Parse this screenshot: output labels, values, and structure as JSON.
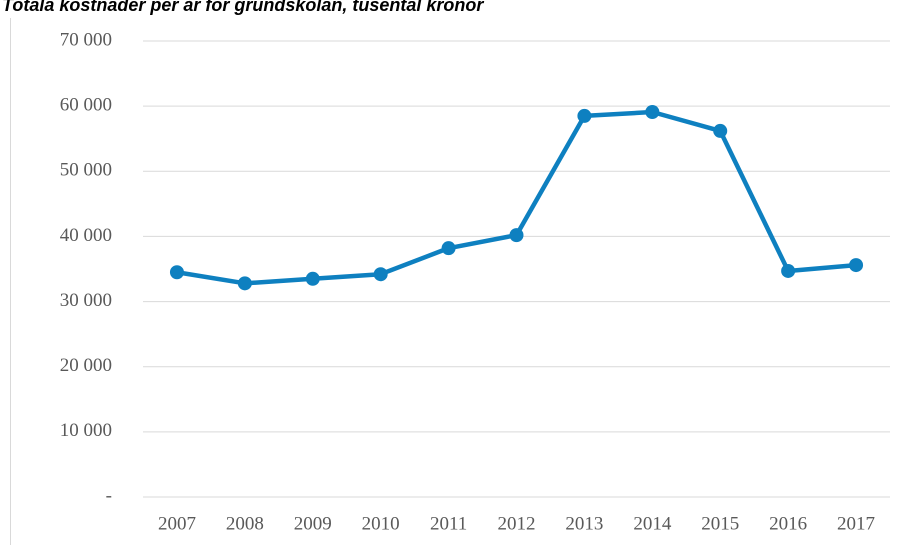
{
  "chart_data": {
    "type": "line",
    "title": "Totala kostnader per år för grundskolan, tusental kronor",
    "categories": [
      "2007",
      "2008",
      "2009",
      "2010",
      "2011",
      "2012",
      "2013",
      "2014",
      "2015",
      "2016",
      "2017"
    ],
    "series": [
      {
        "name": "Totala kostnader",
        "color": "#0e80c0",
        "values": [
          34500,
          32800,
          33500,
          34200,
          38200,
          40200,
          58500,
          59100,
          56200,
          34700,
          35600
        ]
      }
    ],
    "ylim": [
      0,
      70000
    ],
    "yticks": [
      {
        "value": 0,
        "label": "-"
      },
      {
        "value": 10000,
        "label": "10 000"
      },
      {
        "value": 20000,
        "label": "20 000"
      },
      {
        "value": 30000,
        "label": "30 000"
      },
      {
        "value": 40000,
        "label": "40 000"
      },
      {
        "value": 50000,
        "label": "50 000"
      },
      {
        "value": 60000,
        "label": "60 000"
      },
      {
        "value": 70000,
        "label": "70 000"
      }
    ],
    "grid": true
  }
}
